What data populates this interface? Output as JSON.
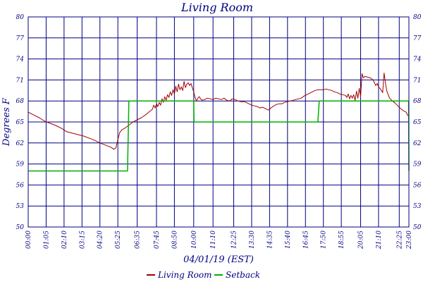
{
  "chart_data": {
    "type": "line",
    "title": "Living Room",
    "xlabel": "04/01/19 (EST)",
    "ylabel": "Degrees F",
    "y_tick_labels": [
      "50",
      "53",
      "56",
      "59",
      "62",
      "65",
      "68",
      "71",
      "74",
      "77",
      "80"
    ],
    "x_tick_labels": [
      "00:00",
      "01:05",
      "02:10",
      "03:15",
      "04:20",
      "05:25",
      "06:35",
      "07:45",
      "08:50",
      "10:00",
      "11:10",
      "12:25",
      "13:30",
      "14:35",
      "15:40",
      "16:45",
      "17:50",
      "18:55",
      "20:05",
      "21:10",
      "22:25",
      "23:00"
    ],
    "x_tick_minutes": [
      0,
      65,
      130,
      195,
      260,
      325,
      395,
      465,
      530,
      600,
      670,
      745,
      810,
      875,
      940,
      1005,
      1070,
      1135,
      1205,
      1270,
      1345,
      1380
    ],
    "ylim": [
      50,
      80
    ],
    "xlim": [
      0,
      1380
    ],
    "grid": true,
    "legend_position": "bottom",
    "colors": {
      "axis": "#000080",
      "living_room": "#a00000",
      "setback": "#00b000"
    },
    "series": [
      {
        "name": "Living Room",
        "x": [
          0,
          20,
          40,
          60,
          80,
          100,
          120,
          140,
          160,
          180,
          200,
          220,
          240,
          260,
          280,
          300,
          310,
          318,
          325,
          332,
          340,
          350,
          360,
          370,
          380,
          395,
          410,
          425,
          440,
          450,
          455,
          460,
          465,
          470,
          475,
          480,
          485,
          490,
          495,
          500,
          505,
          510,
          515,
          520,
          525,
          530,
          535,
          540,
          545,
          550,
          555,
          560,
          565,
          570,
          575,
          580,
          585,
          590,
          595,
          600,
          605,
          610,
          615,
          620,
          625,
          630,
          640,
          650,
          660,
          670,
          680,
          690,
          700,
          710,
          720,
          730,
          740,
          750,
          760,
          770,
          780,
          790,
          800,
          810,
          820,
          830,
          840,
          850,
          860,
          870,
          875,
          880,
          890,
          900,
          910,
          920,
          930,
          940,
          950,
          960,
          970,
          980,
          990,
          1000,
          1010,
          1020,
          1030,
          1040,
          1050,
          1060,
          1070,
          1080,
          1090,
          1100,
          1110,
          1120,
          1130,
          1140,
          1150,
          1155,
          1160,
          1165,
          1170,
          1175,
          1180,
          1185,
          1190,
          1195,
          1200,
          1205,
          1210,
          1215,
          1220,
          1230,
          1240,
          1250,
          1260,
          1265,
          1270,
          1275,
          1280,
          1285,
          1290,
          1295,
          1300,
          1305,
          1310,
          1315,
          1320,
          1330,
          1340,
          1350,
          1360,
          1370,
          1375,
          1380
        ],
        "values": [
          66.4,
          66.0,
          65.6,
          65.1,
          64.8,
          64.5,
          64.1,
          63.6,
          63.4,
          63.2,
          63.0,
          62.7,
          62.4,
          62.0,
          61.7,
          61.4,
          61.1,
          61.3,
          62.5,
          63.5,
          63.9,
          64.1,
          64.4,
          64.7,
          65.0,
          65.3,
          65.6,
          66.0,
          66.5,
          66.8,
          67.4,
          67.0,
          67.6,
          67.2,
          67.8,
          67.4,
          68.3,
          67.8,
          68.6,
          68.1,
          68.9,
          68.5,
          69.3,
          68.8,
          69.6,
          69.0,
          70.1,
          69.3,
          70.4,
          69.6,
          70.0,
          69.5,
          70.8,
          69.9,
          70.4,
          70.6,
          70.2,
          70.5,
          69.9,
          69.3,
          68.5,
          68.0,
          68.4,
          68.6,
          68.3,
          68.1,
          68.2,
          68.4,
          68.3,
          68.2,
          68.4,
          68.3,
          68.2,
          68.4,
          68.1,
          68.0,
          68.3,
          68.2,
          68.0,
          67.9,
          67.9,
          67.8,
          67.6,
          67.4,
          67.3,
          67.2,
          67.0,
          67.1,
          66.9,
          66.7,
          66.8,
          67.0,
          67.3,
          67.5,
          67.6,
          67.6,
          67.8,
          67.9,
          68.0,
          68.1,
          68.2,
          68.3,
          68.4,
          68.7,
          68.9,
          69.1,
          69.3,
          69.5,
          69.6,
          69.6,
          69.6,
          69.7,
          69.6,
          69.5,
          69.3,
          69.2,
          69.0,
          68.9,
          68.8,
          68.5,
          69.0,
          68.3,
          68.8,
          68.4,
          68.9,
          68.1,
          69.4,
          68.4,
          69.8,
          68.6,
          71.9,
          71.3,
          71.5,
          71.4,
          71.3,
          71.0,
          70.2,
          70.5,
          70.0,
          69.8,
          69.5,
          69.2,
          72.0,
          70.6,
          69.4,
          68.9,
          68.4,
          68.2,
          68.0,
          67.7,
          67.3,
          66.9,
          66.6,
          66.4,
          66.0,
          65.8
        ]
      },
      {
        "name": "Setback",
        "x": [
          0,
          360,
          365,
          600,
          601,
          1050,
          1055,
          1379,
          1380
        ],
        "values": [
          58.0,
          58.0,
          68.0,
          68.0,
          65.0,
          65.0,
          68.0,
          68.0,
          58.0
        ]
      }
    ]
  }
}
